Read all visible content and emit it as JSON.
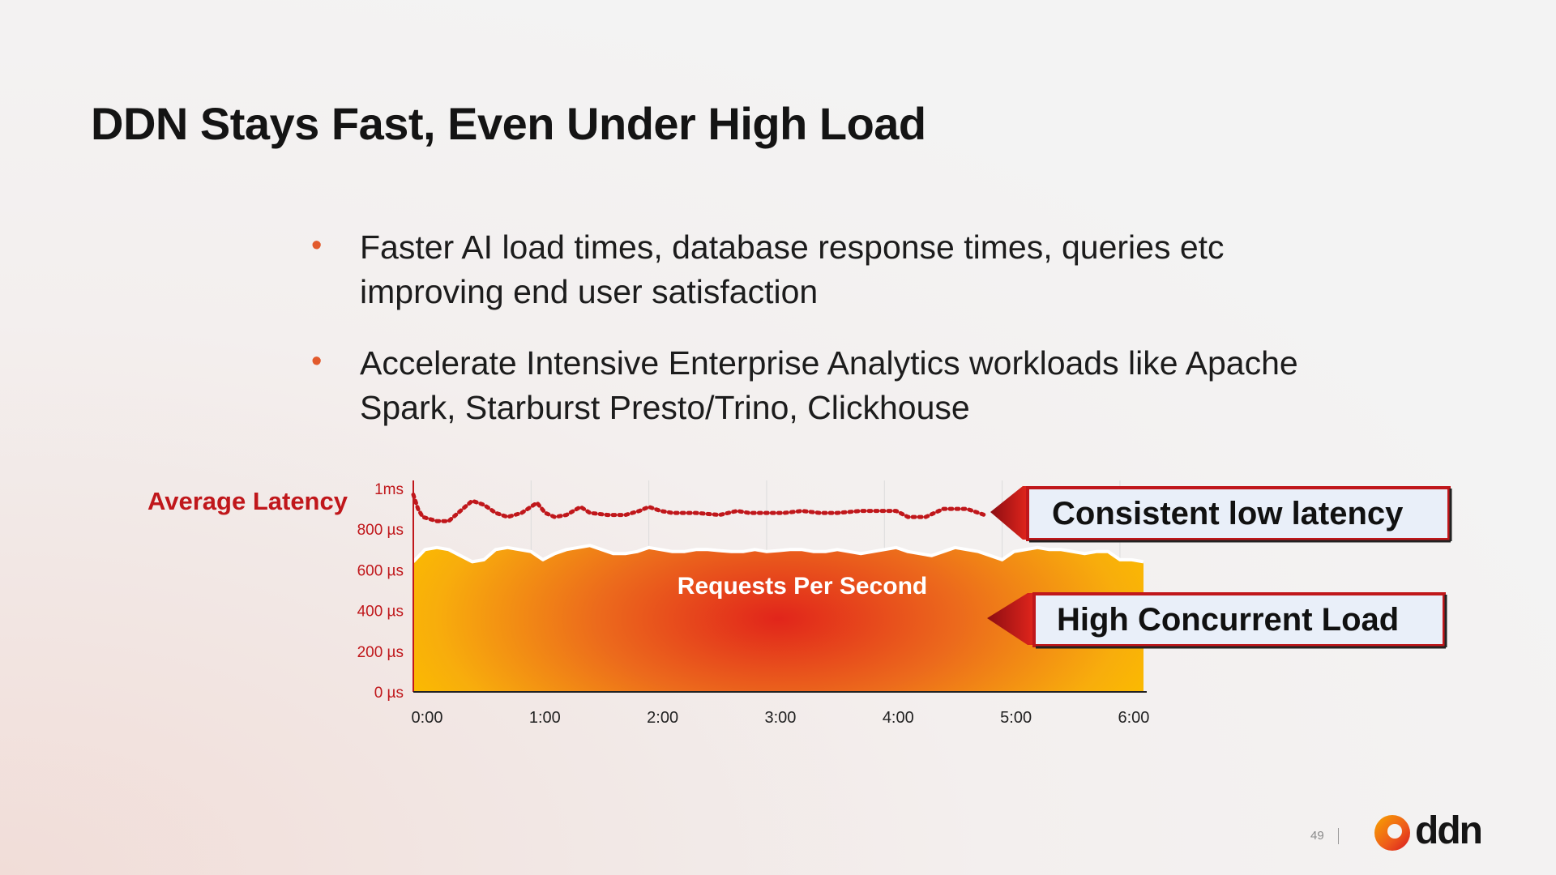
{
  "slide": {
    "title": "DDN Stays Fast, Even Under High Load",
    "bullets": [
      "Faster AI load times, database response times, queries etc improving end user satisfaction",
      "Accelerate Intensive Enterprise Analytics workloads like Apache Spark, Starburst Presto/Trino, Clickhouse"
    ],
    "page_number": "49",
    "logo_text": "ddn"
  },
  "colors": {
    "accent_red": "#c0171b",
    "bullet": "#e25a2c",
    "load_yellow": "#fbbb00",
    "load_red": "#e1251b",
    "callout_bg": "#e9eff9"
  },
  "chart_data": {
    "type": "area",
    "ylabel": "Average Latency",
    "y_ticks": [
      "0 µs",
      "200 µs",
      "400 µs",
      "600 µs",
      "800 µs",
      "1ms"
    ],
    "ylim": [
      0,
      1000
    ],
    "x_ticks": [
      "0:00",
      "1:00",
      "2:00",
      "3:00",
      "4:00",
      "5:00",
      "6:00"
    ],
    "xlim": [
      0,
      6.2
    ],
    "grid": true,
    "area_label": "Requests Per Second",
    "callouts": [
      "Consistent low latency",
      "High Concurrent Load"
    ],
    "series": [
      {
        "style": "dotted-line",
        "x": [
          0,
          0.04,
          0.08,
          0.2,
          0.3,
          0.42,
          0.5,
          0.6,
          0.7,
          0.8,
          0.92,
          1.05,
          1.12,
          1.2,
          1.3,
          1.42,
          1.5,
          1.65,
          1.8,
          1.92,
          2.0,
          2.1,
          2.2,
          2.4,
          2.6,
          2.75,
          2.85,
          3.0,
          3.15,
          3.3,
          3.45,
          3.6,
          3.8,
          4.0,
          4.1,
          4.2,
          4.35,
          4.5,
          4.7,
          4.85
        ],
        "y": [
          970,
          900,
          860,
          840,
          840,
          900,
          940,
          920,
          880,
          860,
          880,
          930,
          880,
          860,
          870,
          910,
          880,
          870,
          870,
          890,
          910,
          890,
          880,
          880,
          870,
          890,
          880,
          880,
          880,
          890,
          880,
          880,
          890,
          890,
          890,
          860,
          860,
          900,
          900,
          870
        ]
      },
      {
        "style": "area",
        "x": [
          0,
          0.1,
          0.2,
          0.3,
          0.4,
          0.5,
          0.6,
          0.7,
          0.8,
          0.9,
          1.0,
          1.1,
          1.2,
          1.3,
          1.4,
          1.5,
          1.6,
          1.7,
          1.8,
          1.9,
          2.0,
          2.1,
          2.2,
          2.3,
          2.4,
          2.5,
          2.6,
          2.7,
          2.8,
          2.9,
          3.0,
          3.1,
          3.2,
          3.3,
          3.4,
          3.5,
          3.6,
          3.7,
          3.8,
          3.9,
          4.0,
          4.1,
          4.2,
          4.3,
          4.4,
          4.5,
          4.6,
          4.7,
          4.8,
          4.9,
          5.0,
          5.1,
          5.2,
          5.3,
          5.4,
          5.5,
          5.6,
          5.7,
          5.8,
          5.9,
          6.0,
          6.1,
          6.2
        ],
        "y": [
          640,
          700,
          710,
          700,
          670,
          640,
          650,
          700,
          710,
          700,
          690,
          650,
          680,
          700,
          710,
          720,
          700,
          680,
          680,
          690,
          710,
          700,
          690,
          690,
          700,
          700,
          695,
          690,
          690,
          700,
          690,
          695,
          700,
          700,
          690,
          690,
          700,
          690,
          680,
          690,
          700,
          710,
          690,
          680,
          670,
          690,
          710,
          700,
          690,
          670,
          650,
          690,
          700,
          710,
          700,
          700,
          690,
          680,
          690,
          690,
          650,
          650,
          640
        ]
      }
    ]
  }
}
